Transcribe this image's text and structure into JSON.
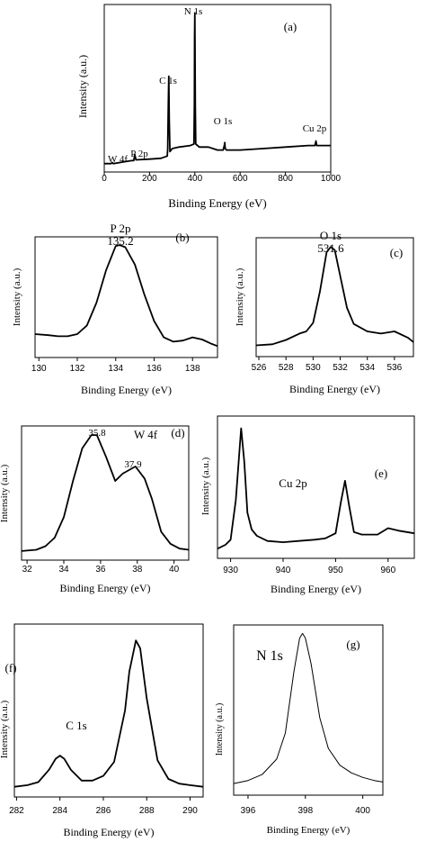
{
  "panels": [
    {
      "id": "a",
      "letter": "(a)",
      "type": "line",
      "xlabel": "Binding Energy (eV)",
      "ylabel": "Intensity (a.u.)",
      "x_ticks": [
        0,
        200,
        400,
        600,
        800,
        1000
      ],
      "xlim": [
        0,
        1000
      ],
      "annotations": [
        {
          "text": "N 1s",
          "x": 400
        },
        {
          "text": "C 1s",
          "x": 285
        },
        {
          "text": "O 1s",
          "x": 532
        },
        {
          "text": "Cu 2p",
          "x": 935
        },
        {
          "text": "P 2p",
          "x": 135
        },
        {
          "text": "W 4f",
          "x": 35
        }
      ]
    },
    {
      "id": "b",
      "letter": "(b)",
      "type": "line",
      "xlabel": "Binding Energy (eV)",
      "ylabel": "Intensity (a.u.)",
      "x_ticks": [
        130,
        132,
        134,
        136,
        138
      ],
      "xlim": [
        129.8,
        139.3
      ],
      "annotations": [
        {
          "text": "P 2p",
          "x": 134.1
        },
        {
          "text": "135.2",
          "x": 134.1
        }
      ]
    },
    {
      "id": "c",
      "letter": "(c)",
      "type": "line",
      "xlabel": "Binding Energy (eV)",
      "ylabel": "Intensity (a.u.)",
      "x_ticks": [
        526,
        528,
        530,
        532,
        534,
        536
      ],
      "xlim": [
        525.8,
        537.4
      ],
      "annotations": [
        {
          "text": "O 1s",
          "x": 531.2
        },
        {
          "text": "531.6",
          "x": 531.2
        }
      ]
    },
    {
      "id": "d",
      "letter": "(d)",
      "type": "line",
      "xlabel": "Binding Energy (eV)",
      "ylabel": "Intensity (a.u.)",
      "x_ticks": [
        32,
        34,
        36,
        38,
        40
      ],
      "xlim": [
        31.7,
        40.8
      ],
      "annotations": [
        {
          "text": "W 4f",
          "x": 37.9
        },
        {
          "text": "35.8",
          "x": 35.8
        },
        {
          "text": "37.9",
          "x": 37.9
        }
      ]
    },
    {
      "id": "e",
      "letter": "(e)",
      "type": "line",
      "xlabel": "Binding Energy (eV)",
      "ylabel": "Intensity (a.u.)",
      "x_ticks": [
        930,
        940,
        950,
        960
      ],
      "xlim": [
        927.5,
        965
      ],
      "annotations": [
        {
          "text": "Cu 2p",
          "x": 940
        }
      ]
    },
    {
      "id": "f",
      "letter": "(f)",
      "type": "line",
      "xlabel": "Binding Energy (eV)",
      "ylabel": "Intensity (a.u.)",
      "x_ticks": [
        282,
        284,
        286,
        288,
        290
      ],
      "xlim": [
        281.9,
        290.6
      ],
      "annotations": [
        {
          "text": "C 1s",
          "x": 285
        }
      ]
    },
    {
      "id": "g",
      "letter": "(g)",
      "type": "line",
      "xlabel": "Binding Energy (eV)",
      "ylabel": "Intensity (a.u.)",
      "x_ticks": [
        396,
        398,
        400
      ],
      "xlim": [
        395.5,
        400.7
      ],
      "annotations": [
        {
          "text": "N 1s",
          "x": 397
        }
      ]
    }
  ],
  "chart_data": [
    {
      "type": "line",
      "panel": "a",
      "xlim": [
        0,
        1000
      ],
      "ylim": [
        0,
        100
      ],
      "x": [
        0,
        30,
        35,
        40,
        80,
        120,
        130,
        135,
        140,
        200,
        250,
        278,
        280,
        283,
        285,
        287,
        290,
        300,
        330,
        380,
        396,
        398,
        399,
        400,
        402,
        404,
        420,
        460,
        500,
        525,
        530,
        532,
        534,
        540,
        600,
        700,
        800,
        900,
        930,
        935,
        938,
        945,
        1000
      ],
      "y": [
        0,
        0,
        0.8,
        0,
        1,
        2,
        2,
        6,
        2.5,
        3,
        3.5,
        5,
        10,
        40,
        58,
        30,
        8,
        10,
        11,
        12,
        13,
        40,
        84,
        100,
        40,
        13,
        11,
        11,
        9,
        9,
        12,
        14,
        10,
        9,
        9,
        10,
        11,
        12,
        12,
        15,
        12,
        12,
        12
      ]
    },
    {
      "type": "line",
      "panel": "b",
      "xlim": [
        129.8,
        139.3
      ],
      "ylim": [
        0,
        100
      ],
      "x": [
        129.8,
        130.5,
        131,
        131.5,
        132,
        132.5,
        133,
        133.5,
        134,
        134.2,
        134.5,
        135,
        135.5,
        136,
        136.5,
        137,
        137.5,
        138,
        138.5,
        139,
        139.3
      ],
      "y": [
        16,
        15,
        14,
        14,
        16,
        24,
        45,
        75,
        97,
        98,
        96,
        80,
        52,
        28,
        13,
        9,
        10,
        13,
        11,
        7,
        5
      ]
    },
    {
      "type": "line",
      "panel": "c",
      "xlim": [
        525.8,
        537.4
      ],
      "ylim": [
        0,
        100
      ],
      "x": [
        525.8,
        527,
        528,
        529,
        529.5,
        530,
        530.5,
        531,
        531.3,
        531.6,
        532,
        532.5,
        533,
        534,
        535,
        536,
        537,
        537.4
      ],
      "y": [
        5,
        6,
        10,
        16,
        18,
        26,
        55,
        92,
        97,
        94,
        70,
        40,
        25,
        18,
        16,
        18,
        12,
        8
      ]
    },
    {
      "type": "line",
      "panel": "d",
      "xlim": [
        31.7,
        40.8
      ],
      "ylim": [
        0,
        100
      ],
      "x": [
        31.7,
        32.5,
        33,
        33.5,
        34,
        34.5,
        35,
        35.5,
        35.8,
        36.3,
        36.8,
        37.2,
        37.9,
        38.4,
        38.8,
        39.3,
        39.8,
        40.3,
        40.8
      ],
      "y": [
        2,
        3,
        6,
        13,
        30,
        60,
        87,
        98,
        98,
        80,
        60,
        66,
        72,
        62,
        45,
        18,
        8,
        4,
        3
      ]
    },
    {
      "type": "line",
      "panel": "e",
      "xlim": [
        927.5,
        965
      ],
      "ylim": [
        0,
        100
      ],
      "x": [
        927.5,
        929,
        930,
        931,
        932,
        932.6,
        933.2,
        934,
        935,
        937,
        940,
        943,
        946,
        948,
        950,
        951,
        951.8,
        952.6,
        953.5,
        955,
        958,
        960,
        962,
        965
      ],
      "y": [
        2,
        5,
        9,
        40,
        96,
        70,
        30,
        17,
        12,
        8,
        7,
        8,
        9,
        10,
        14,
        38,
        55,
        35,
        15,
        13,
        13,
        18,
        16,
        14
      ]
    },
    {
      "type": "line",
      "panel": "f",
      "xlim": [
        281.9,
        290.6
      ],
      "ylim": [
        0,
        100
      ],
      "x": [
        281.9,
        282.5,
        283,
        283.5,
        283.8,
        284,
        284.2,
        284.5,
        285,
        285.5,
        286,
        286.5,
        287,
        287.2,
        287.5,
        287.7,
        288,
        288.5,
        289,
        289.5,
        290,
        290.6
      ],
      "y": [
        1,
        2,
        4,
        12,
        19,
        21,
        19,
        12,
        5,
        5,
        8,
        17,
        50,
        75,
        95,
        90,
        58,
        18,
        6,
        3,
        2,
        1
      ]
    },
    {
      "type": "line",
      "panel": "g",
      "xlim": [
        395.5,
        400.7
      ],
      "ylim": [
        0,
        100
      ],
      "x": [
        395.5,
        396,
        396.5,
        397,
        397.3,
        397.6,
        397.8,
        397.9,
        398,
        398.2,
        398.5,
        398.8,
        399.2,
        399.6,
        400,
        400.4,
        400.7
      ],
      "y": [
        2,
        4,
        8,
        18,
        35,
        75,
        97,
        100,
        97,
        80,
        45,
        25,
        14,
        9,
        6,
        4,
        3
      ]
    }
  ]
}
